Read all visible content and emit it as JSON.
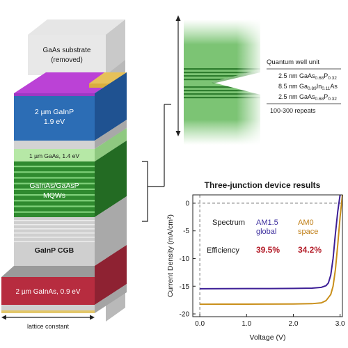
{
  "stack": {
    "substrate_line1": "GaAs substrate",
    "substrate_line2": "(removed)",
    "gainp_line1": "2 µm GaInP",
    "gainp_line2": "1.9 eV",
    "gaas_label": "1 µm GaAs, 1.4 eV",
    "mqw_line1": "GaInAs/GaAsP",
    "mqw_line2": "MQWs",
    "cgb_label": "GaInP  CGB",
    "gainas_label": "2 µm GaInAs, 0.9 eV",
    "lattice_label": "lattice constant"
  },
  "quantum_well": {
    "title": "Quantum well unit",
    "layers": [
      {
        "thickness": "2.5 nm",
        "el1": "GaAs",
        "sub1": "0.68",
        "el2": "P",
        "sub2": "0.32"
      },
      {
        "thickness": "8.5 nm",
        "el1": "Ga",
        "sub1": "0.89",
        "el2": "In",
        "sub2": "0.11",
        "el3": "As"
      },
      {
        "thickness": "2.5 nm",
        "el1": "GaAs",
        "sub1": "0.68",
        "el2": "P",
        "sub2": "0.32"
      }
    ],
    "repeats": "100-300 repeats"
  },
  "chart_data": {
    "type": "line",
    "title": "Three-junction device results",
    "xlabel": "Voltage (V)",
    "ylabel": "Current Density (mA/cm²)",
    "xlim": [
      -0.15,
      3.05
    ],
    "ylim": [
      -20.5,
      1.5
    ],
    "xticks": [
      0.0,
      1.0,
      2.0,
      3.0
    ],
    "xtick_labels": [
      "0.0",
      "1.0",
      "2.0",
      "3.0"
    ],
    "yticks": [
      0,
      -5,
      -10,
      -15,
      -20
    ],
    "ytick_labels": [
      "0",
      "-5",
      "-10",
      "-15",
      "-20"
    ],
    "legend_header": {
      "spectrum": "Spectrum",
      "efficiency": "Efficiency"
    },
    "series": [
      {
        "name_line1": "AM1.5",
        "name_line2": "global",
        "efficiency": "39.5%",
        "color": "#3d1f96",
        "x": [
          0.0,
          0.5,
          1.0,
          1.5,
          2.0,
          2.4,
          2.6,
          2.7,
          2.75,
          2.8,
          2.85,
          2.9,
          2.95,
          3.0
        ],
        "y": [
          -15.45,
          -15.44,
          -15.43,
          -15.42,
          -15.4,
          -15.35,
          -15.2,
          -14.9,
          -14.4,
          -13.0,
          -10.0,
          -5.5,
          -1.5,
          1.5
        ]
      },
      {
        "name_line1": "AM0",
        "name_line2": "space",
        "efficiency": "34.2%",
        "color": "#c98f1a",
        "x": [
          0.0,
          0.5,
          1.0,
          1.5,
          2.0,
          2.4,
          2.6,
          2.7,
          2.8,
          2.85,
          2.9,
          2.95,
          3.0,
          3.05
        ],
        "y": [
          -18.25,
          -18.24,
          -18.23,
          -18.22,
          -18.2,
          -18.15,
          -18.0,
          -17.6,
          -16.5,
          -15.0,
          -12.0,
          -7.5,
          -2.5,
          1.5
        ]
      }
    ],
    "efficiency_color": "#b41e2a",
    "series_label_colors": [
      "#3d2f9e",
      "#c07e14"
    ]
  }
}
